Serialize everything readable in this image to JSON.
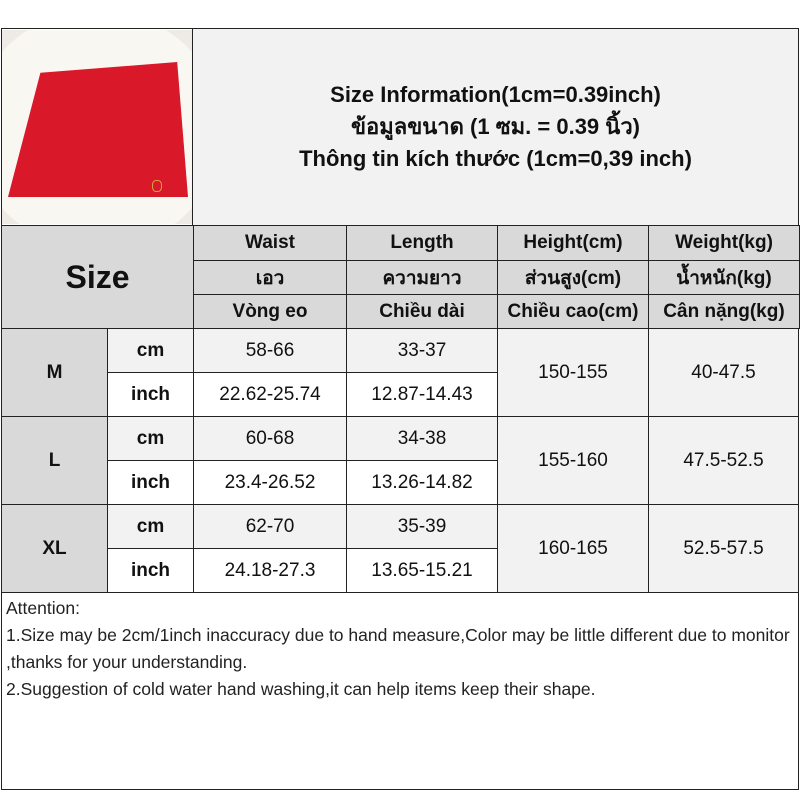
{
  "title": {
    "line1": "Size Information(1cm=0.39inch)",
    "line2": "ข้อมูลขนาด (1 ซม. = 0.39 นิ้ว)",
    "line3": "Thông tin kích thước (1cm=0,39 inch)"
  },
  "header": {
    "size": "Size",
    "columns": [
      {
        "en": "Waist",
        "th": "เอว",
        "vi": "Vòng eo"
      },
      {
        "en": "Length",
        "th": "ความยาว",
        "vi": "Chiều dài"
      },
      {
        "en": "Height(cm)",
        "th": "ส่วนสูง(cm)",
        "vi": "Chiều cao(cm)"
      },
      {
        "en": "Weight(kg)",
        "th": "น้ำหนัก(kg)",
        "vi": "Cân nặng(kg)"
      }
    ]
  },
  "rows": [
    {
      "size": "M",
      "cm_label": "cm",
      "inch_label": "inch",
      "waist_cm": "58-66",
      "length_cm": "33-37",
      "waist_in": "22.62-25.74",
      "length_in": "12.87-14.43",
      "height": "150-155",
      "weight": "40-47.5"
    },
    {
      "size": "L",
      "cm_label": "cm",
      "inch_label": "inch",
      "waist_cm": "60-68",
      "length_cm": "34-38",
      "waist_in": "23.4-26.52",
      "length_in": "13.26-14.82",
      "height": "155-160",
      "weight": "47.5-52.5"
    },
    {
      "size": "XL",
      "cm_label": "cm",
      "inch_label": "inch",
      "waist_cm": "62-70",
      "length_cm": "35-39",
      "waist_in": "24.18-27.3",
      "length_in": "13.65-15.21",
      "height": "160-165",
      "weight": "52.5-57.5"
    }
  ],
  "notes": {
    "heading": "Attention:",
    "line1": "1.Size may be 2cm/1inch inaccuracy due to hand measure,Color may be little different due to monitor ,thanks for your understanding.",
    "line2": "2.Suggestion of cold water hand washing,it can help items keep their shape."
  },
  "colors": {
    "skirt": "#d9182a",
    "header_bg": "#d9d9d9",
    "light_bg": "#f2f2f2"
  }
}
